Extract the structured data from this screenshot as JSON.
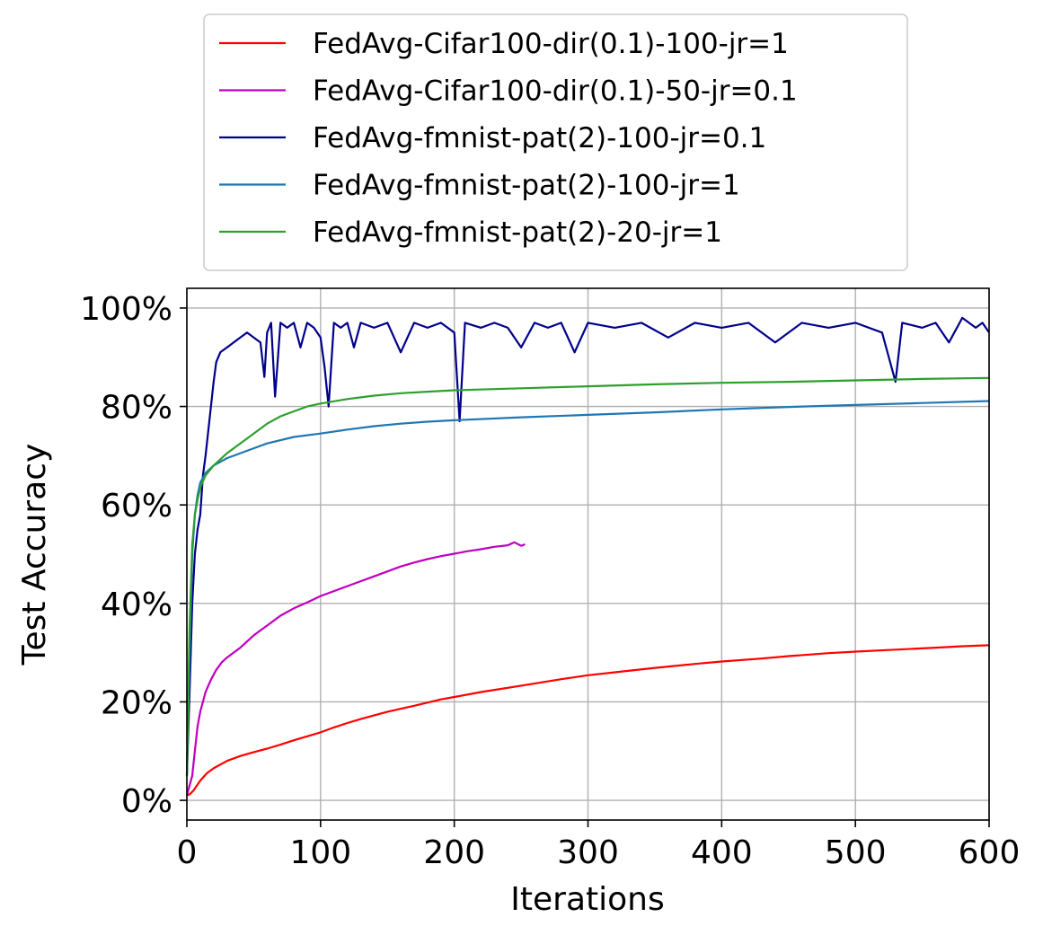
{
  "chart_data": {
    "type": "line",
    "title": "",
    "xlabel": "Iterations",
    "ylabel": "Test Accuracy",
    "xlim": [
      0,
      600
    ],
    "ylim": [
      -4,
      104
    ],
    "grid": true,
    "legend_placement": "top (above plot)",
    "x_ticks": [
      0,
      100,
      200,
      300,
      400,
      500,
      600
    ],
    "x_tick_labels": [
      "0",
      "100",
      "200",
      "300",
      "400",
      "500",
      "600"
    ],
    "y_ticks": [
      0,
      20,
      40,
      60,
      80,
      100
    ],
    "y_tick_labels": [
      "0%",
      "20%",
      "40%",
      "60%",
      "80%",
      "100%"
    ],
    "series": [
      {
        "name": "FedAvg-Cifar100-dir(0.1)-100-jr=1",
        "color": "#ff0000",
        "points": [
          [
            0,
            1
          ],
          [
            2,
            1.2
          ],
          [
            5,
            2
          ],
          [
            10,
            4
          ],
          [
            15,
            5.5
          ],
          [
            20,
            6.5
          ],
          [
            30,
            8
          ],
          [
            40,
            9
          ],
          [
            50,
            9.8
          ],
          [
            60,
            10.5
          ],
          [
            70,
            11.3
          ],
          [
            80,
            12.2
          ],
          [
            90,
            13
          ],
          [
            100,
            13.8
          ],
          [
            110,
            14.8
          ],
          [
            120,
            15.7
          ],
          [
            130,
            16.5
          ],
          [
            150,
            18
          ],
          [
            170,
            19.2
          ],
          [
            190,
            20.5
          ],
          [
            200,
            21
          ],
          [
            220,
            22
          ],
          [
            250,
            23.3
          ],
          [
            280,
            24.6
          ],
          [
            300,
            25.4
          ],
          [
            330,
            26.3
          ],
          [
            350,
            26.9
          ],
          [
            380,
            27.7
          ],
          [
            400,
            28.2
          ],
          [
            430,
            28.8
          ],
          [
            450,
            29.3
          ],
          [
            480,
            29.9
          ],
          [
            500,
            30.2
          ],
          [
            530,
            30.6
          ],
          [
            560,
            31
          ],
          [
            580,
            31.3
          ],
          [
            600,
            31.5
          ]
        ]
      },
      {
        "name": "FedAvg-Cifar100-dir(0.1)-50-jr=0.1",
        "color": "#bf00bf",
        "points": [
          [
            0,
            1
          ],
          [
            2,
            3
          ],
          [
            4,
            5
          ],
          [
            6,
            10
          ],
          [
            8,
            15
          ],
          [
            10,
            18
          ],
          [
            14,
            22
          ],
          [
            18,
            24.5
          ],
          [
            22,
            26.5
          ],
          [
            26,
            28
          ],
          [
            30,
            29
          ],
          [
            40,
            31
          ],
          [
            50,
            33.5
          ],
          [
            60,
            35.5
          ],
          [
            70,
            37.5
          ],
          [
            80,
            39
          ],
          [
            90,
            40.2
          ],
          [
            100,
            41.5
          ],
          [
            110,
            42.5
          ],
          [
            120,
            43.5
          ],
          [
            130,
            44.5
          ],
          [
            140,
            45.5
          ],
          [
            150,
            46.5
          ],
          [
            160,
            47.5
          ],
          [
            170,
            48.3
          ],
          [
            180,
            49
          ],
          [
            190,
            49.6
          ],
          [
            200,
            50.1
          ],
          [
            210,
            50.6
          ],
          [
            220,
            51
          ],
          [
            230,
            51.5
          ],
          [
            240,
            51.8
          ],
          [
            245,
            52.4
          ],
          [
            250,
            51.7
          ],
          [
            253,
            52
          ]
        ]
      },
      {
        "name": "FedAvg-fmnist-pat(2)-100-jr=0.1",
        "color": "#00008b",
        "points": [
          [
            0,
            5
          ],
          [
            2,
            22
          ],
          [
            4,
            40
          ],
          [
            6,
            50
          ],
          [
            8,
            55
          ],
          [
            10,
            58
          ],
          [
            12,
            66
          ],
          [
            14,
            70
          ],
          [
            16,
            75
          ],
          [
            18,
            80
          ],
          [
            20,
            85
          ],
          [
            22,
            89
          ],
          [
            25,
            91
          ],
          [
            30,
            92
          ],
          [
            35,
            93
          ],
          [
            40,
            94
          ],
          [
            45,
            95
          ],
          [
            50,
            94
          ],
          [
            55,
            93
          ],
          [
            58,
            86
          ],
          [
            60,
            95
          ],
          [
            63,
            97
          ],
          [
            66,
            82
          ],
          [
            70,
            97
          ],
          [
            75,
            96
          ],
          [
            80,
            97
          ],
          [
            85,
            92
          ],
          [
            90,
            97
          ],
          [
            95,
            96
          ],
          [
            100,
            94
          ],
          [
            103,
            88
          ],
          [
            106,
            80
          ],
          [
            110,
            97
          ],
          [
            115,
            96
          ],
          [
            120,
            97
          ],
          [
            125,
            92
          ],
          [
            130,
            97
          ],
          [
            140,
            96
          ],
          [
            150,
            97
          ],
          [
            160,
            91
          ],
          [
            170,
            97
          ],
          [
            180,
            96
          ],
          [
            190,
            97
          ],
          [
            200,
            95
          ],
          [
            204,
            77
          ],
          [
            208,
            97
          ],
          [
            220,
            96
          ],
          [
            230,
            97
          ],
          [
            240,
            96
          ],
          [
            250,
            92
          ],
          [
            260,
            97
          ],
          [
            270,
            96
          ],
          [
            280,
            97
          ],
          [
            290,
            91
          ],
          [
            300,
            97
          ],
          [
            320,
            96
          ],
          [
            340,
            97
          ],
          [
            360,
            94
          ],
          [
            380,
            97
          ],
          [
            400,
            96
          ],
          [
            420,
            97
          ],
          [
            440,
            93
          ],
          [
            460,
            97
          ],
          [
            480,
            96
          ],
          [
            500,
            97
          ],
          [
            520,
            95
          ],
          [
            530,
            85
          ],
          [
            535,
            97
          ],
          [
            550,
            96
          ],
          [
            560,
            97
          ],
          [
            570,
            93
          ],
          [
            580,
            98
          ],
          [
            590,
            96
          ],
          [
            595,
            97
          ],
          [
            600,
            95
          ]
        ]
      },
      {
        "name": "FedAvg-fmnist-pat(2)-100-jr=1",
        "color": "#1f77b4",
        "points": [
          [
            0,
            5
          ],
          [
            2,
            30
          ],
          [
            4,
            50
          ],
          [
            6,
            58
          ],
          [
            8,
            62
          ],
          [
            10,
            64.5
          ],
          [
            14,
            66.5
          ],
          [
            20,
            68
          ],
          [
            30,
            69.5
          ],
          [
            40,
            70.5
          ],
          [
            50,
            71.5
          ],
          [
            60,
            72.5
          ],
          [
            80,
            73.8
          ],
          [
            100,
            74.5
          ],
          [
            120,
            75.3
          ],
          [
            140,
            76
          ],
          [
            160,
            76.5
          ],
          [
            180,
            76.9
          ],
          [
            200,
            77.2
          ],
          [
            250,
            77.8
          ],
          [
            300,
            78.3
          ],
          [
            350,
            78.8
          ],
          [
            400,
            79.4
          ],
          [
            450,
            79.9
          ],
          [
            500,
            80.3
          ],
          [
            550,
            80.7
          ],
          [
            600,
            81.1
          ]
        ]
      },
      {
        "name": "FedAvg-fmnist-pat(2)-20-jr=1",
        "color": "#2ca02c",
        "points": [
          [
            0,
            5
          ],
          [
            2,
            35
          ],
          [
            4,
            52
          ],
          [
            6,
            58
          ],
          [
            8,
            61
          ],
          [
            10,
            63.5
          ],
          [
            14,
            66
          ],
          [
            20,
            68
          ],
          [
            30,
            70.5
          ],
          [
            40,
            72.5
          ],
          [
            50,
            74.5
          ],
          [
            60,
            76.5
          ],
          [
            70,
            78
          ],
          [
            80,
            79
          ],
          [
            90,
            80
          ],
          [
            100,
            80.6
          ],
          [
            120,
            81.5
          ],
          [
            140,
            82.2
          ],
          [
            160,
            82.7
          ],
          [
            180,
            83
          ],
          [
            200,
            83.3
          ],
          [
            250,
            83.7
          ],
          [
            300,
            84.1
          ],
          [
            350,
            84.5
          ],
          [
            400,
            84.8
          ],
          [
            450,
            85
          ],
          [
            500,
            85.3
          ],
          [
            550,
            85.6
          ],
          [
            600,
            85.8
          ]
        ]
      }
    ]
  }
}
